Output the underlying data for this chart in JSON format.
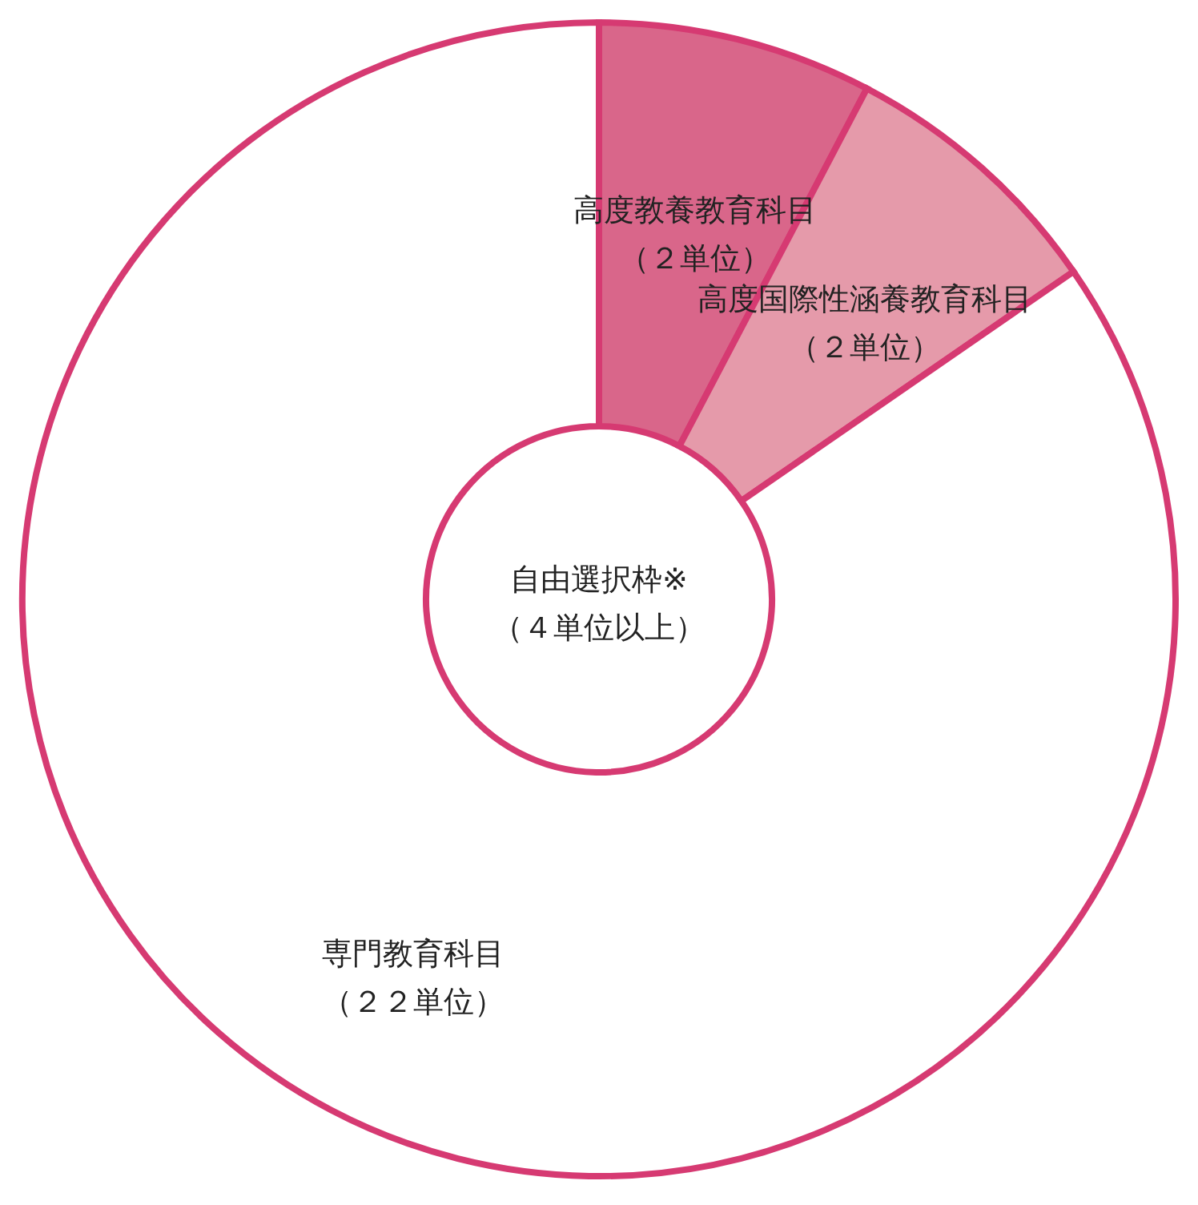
{
  "chart_data": {
    "type": "donut",
    "categories": [
      "高度教養教育科目",
      "高度国際性涵養教育科目",
      "専門教育科目"
    ],
    "values": [
      2,
      2,
      22
    ],
    "value_labels": [
      "（２単位）",
      "（２単位）",
      "（２２単位）"
    ],
    "colors": [
      "#d9668a",
      "#e59aaa",
      "#ffffff"
    ],
    "annotations": [
      "自由選択枠※\n（４単位以上）"
    ],
    "legend": false
  }
}
